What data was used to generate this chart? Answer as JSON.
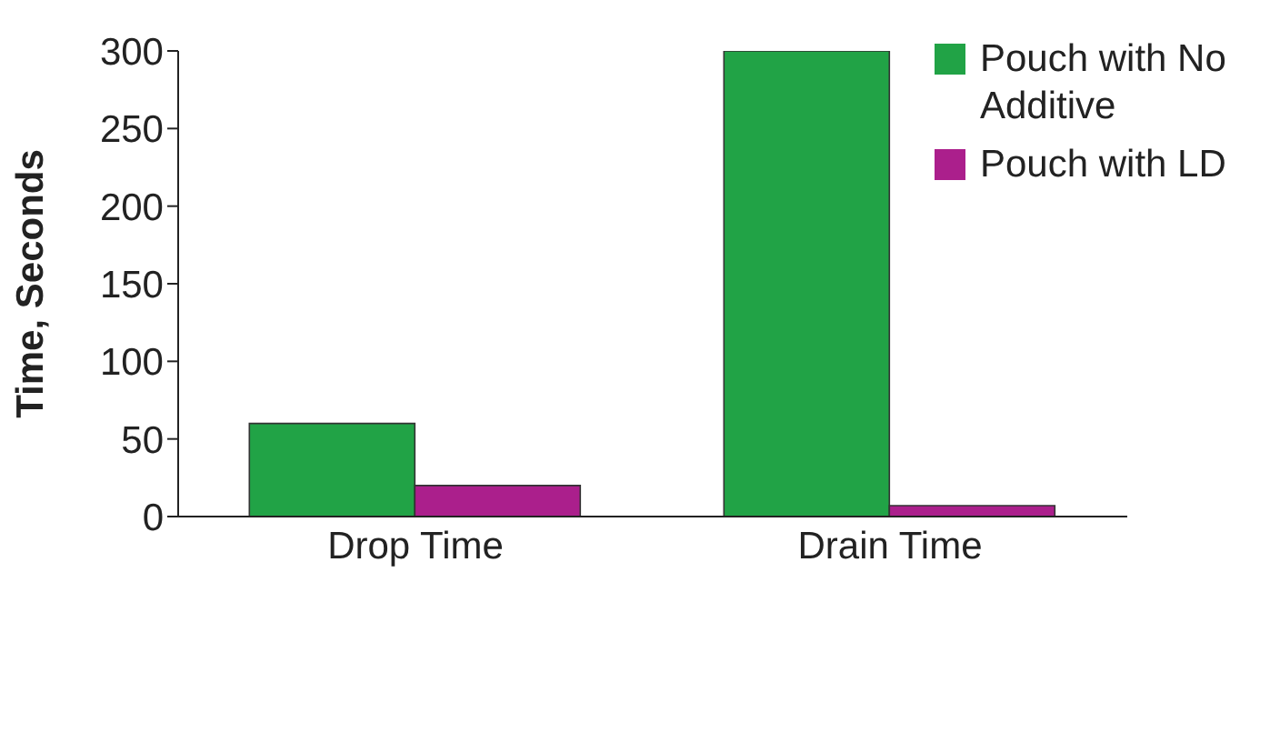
{
  "chart_data": {
    "type": "bar",
    "ylabel": "Time, Seconds",
    "categories": [
      "Drop Time",
      "Drain Time"
    ],
    "series": [
      {
        "name": "Pouch with No Additive",
        "color": "#21a346",
        "values": [
          60,
          300
        ]
      },
      {
        "name": "Pouch with LD",
        "color": "#ab1f8c",
        "values": [
          20,
          7
        ]
      }
    ],
    "ylim": [
      0,
      300
    ],
    "yticks": [
      0,
      50,
      100,
      150,
      200,
      250,
      300
    ],
    "grid": false,
    "legend": "top right"
  }
}
